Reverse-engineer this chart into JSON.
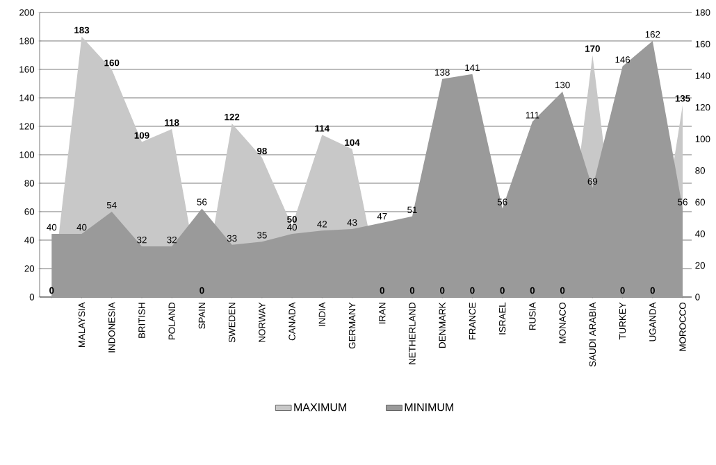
{
  "chart_data": {
    "type": "area",
    "categories": [
      null,
      "MALAYSIA",
      "INDONESIA",
      "BRITISH",
      "POLAND",
      "SPAIN",
      "SWEDEN",
      "NORWAY",
      "CANADA",
      "INDIA",
      "GERMANY",
      "IRAN",
      "NETHERLAND",
      "DENMARK",
      "FRANCE",
      "ISRAEL",
      "RUSIA",
      "MONACO",
      "SAUDI ARABIA",
      "TURKEY",
      "UGANDA",
      "MOROCCO"
    ],
    "series": [
      {
        "name": "MAXIMUM",
        "color": "#c8c8c8",
        "values": [
          0,
          183,
          160,
          109,
          118,
          0,
          122,
          98,
          50,
          114,
          104,
          0,
          0,
          0,
          0,
          0,
          0,
          0,
          170,
          0,
          0,
          135
        ]
      },
      {
        "name": "MINIMUM",
        "color": "#9a9a9a",
        "axis": "y2",
        "values": [
          40,
          40,
          54,
          32,
          32,
          56,
          33,
          35,
          40,
          42,
          43,
          47,
          51,
          138,
          141,
          56,
          111,
          130,
          69,
          146,
          162,
          56
        ]
      }
    ],
    "ylim": [
      0,
      200
    ],
    "yticks": [
      0,
      20,
      40,
      60,
      80,
      100,
      120,
      140,
      160,
      180,
      200
    ],
    "y2lim": [
      0,
      180
    ],
    "y2ticks": [
      0,
      20,
      40,
      60,
      80,
      100,
      120,
      140,
      160,
      180
    ],
    "grid": "y",
    "legend": "bottom",
    "data_labels": true
  }
}
